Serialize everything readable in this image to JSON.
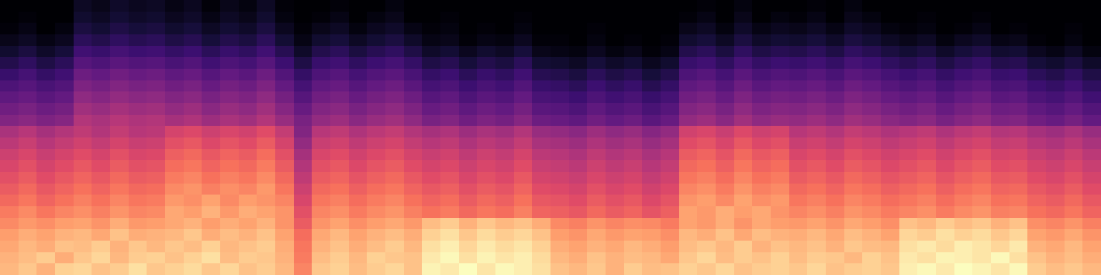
{
  "chart_data": {
    "type": "heatmap",
    "color": "magma",
    "tick_labels": false,
    "cells": [
      [
        80,
        83,
        79,
        85,
        86,
        82,
        84,
        88,
        83,
        85,
        87,
        83,
        86,
        82,
        84,
        80,
        70,
        83,
        85,
        81,
        84,
        86,
        82,
        92,
        90,
        94,
        89,
        93,
        91,
        88,
        82,
        80,
        83,
        79,
        84,
        81,
        82,
        85,
        83,
        86,
        82,
        84,
        85,
        83,
        86,
        82,
        84,
        85,
        83,
        91,
        93,
        90,
        94,
        92,
        89,
        93,
        84,
        81,
        83,
        80
      ],
      [
        79,
        81,
        84,
        78,
        83,
        86,
        80,
        84,
        85,
        82,
        85,
        88,
        81,
        84,
        83,
        79,
        68,
        81,
        84,
        80,
        85,
        83,
        82,
        90,
        93,
        88,
        92,
        89,
        91,
        87,
        80,
        78,
        82,
        79,
        81,
        80,
        77,
        83,
        86,
        81,
        84,
        82,
        85,
        81,
        84,
        83,
        80,
        85,
        82,
        90,
        88,
        92,
        91,
        89,
        93,
        88,
        82,
        79,
        81,
        78
      ],
      [
        77,
        80,
        78,
        82,
        81,
        84,
        79,
        83,
        80,
        83,
        81,
        85,
        80,
        82,
        84,
        78,
        67,
        79,
        82,
        78,
        81,
        84,
        80,
        88,
        91,
        86,
        90,
        87,
        89,
        85,
        78,
        76,
        79,
        77,
        80,
        78,
        75,
        81,
        83,
        80,
        84,
        79,
        82,
        80,
        82,
        79,
        83,
        81,
        80,
        88,
        90,
        87,
        91,
        89,
        86,
        90,
        79,
        77,
        80,
        76
      ],
      [
        75,
        78,
        76,
        79,
        80,
        77,
        82,
        78,
        79,
        80,
        83,
        78,
        81,
        79,
        82,
        76,
        65,
        77,
        80,
        76,
        79,
        81,
        78,
        85,
        88,
        83,
        87,
        84,
        86,
        82,
        75,
        73,
        77,
        74,
        76,
        75,
        72,
        80,
        78,
        82,
        77,
        81,
        79,
        78,
        80,
        77,
        81,
        79,
        76,
        86,
        84,
        88,
        85,
        87,
        83,
        86,
        76,
        74,
        77,
        73
      ],
      [
        71,
        74,
        72,
        75,
        76,
        73,
        78,
        74,
        75,
        77,
        79,
        75,
        78,
        76,
        79,
        73,
        61,
        73,
        76,
        72,
        75,
        77,
        74,
        81,
        84,
        79,
        83,
        80,
        82,
        78,
        71,
        69,
        73,
        70,
        72,
        71,
        68,
        76,
        74,
        78,
        73,
        77,
        75,
        74,
        76,
        73,
        77,
        75,
        72,
        82,
        80,
        84,
        81,
        83,
        79,
        82,
        72,
        70,
        73,
        69
      ],
      [
        68,
        71,
        67,
        70,
        72,
        69,
        73,
        70,
        71,
        77,
        75,
        79,
        74,
        78,
        76,
        73,
        58,
        70,
        72,
        68,
        71,
        73,
        69,
        66,
        68,
        64,
        67,
        65,
        69,
        63,
        62,
        60,
        64,
        61,
        63,
        59,
        62,
        76,
        74,
        78,
        75,
        77,
        73,
        70,
        72,
        69,
        73,
        71,
        68,
        70,
        72,
        68,
        71,
        73,
        69,
        70,
        66,
        64,
        67,
        63
      ],
      [
        64,
        67,
        63,
        66,
        69,
        66,
        70,
        67,
        68,
        74,
        72,
        76,
        71,
        75,
        73,
        70,
        55,
        67,
        69,
        65,
        68,
        70,
        66,
        63,
        65,
        61,
        64,
        62,
        66,
        60,
        59,
        57,
        61,
        58,
        60,
        56,
        59,
        73,
        75,
        71,
        76,
        72,
        74,
        67,
        69,
        66,
        70,
        68,
        65,
        67,
        69,
        65,
        68,
        70,
        66,
        67,
        63,
        61,
        64,
        60
      ],
      [
        61,
        64,
        60,
        63,
        66,
        63,
        67,
        64,
        65,
        71,
        73,
        69,
        72,
        70,
        74,
        67,
        52,
        64,
        66,
        62,
        65,
        67,
        63,
        60,
        62,
        58,
        61,
        59,
        63,
        57,
        56,
        54,
        58,
        55,
        57,
        53,
        56,
        70,
        72,
        68,
        73,
        69,
        71,
        64,
        66,
        63,
        67,
        65,
        62,
        64,
        66,
        62,
        65,
        67,
        63,
        64,
        60,
        58,
        61,
        57
      ],
      [
        58,
        61,
        57,
        60,
        63,
        60,
        64,
        61,
        62,
        68,
        70,
        66,
        69,
        67,
        71,
        64,
        49,
        61,
        63,
        59,
        62,
        64,
        60,
        57,
        59,
        55,
        58,
        56,
        60,
        54,
        53,
        51,
        55,
        52,
        54,
        50,
        53,
        67,
        69,
        65,
        70,
        66,
        68,
        61,
        63,
        60,
        64,
        62,
        59,
        61,
        63,
        59,
        62,
        64,
        60,
        61,
        57,
        55,
        58,
        54
      ],
      [
        55,
        58,
        54,
        57,
        60,
        57,
        61,
        58,
        59,
        65,
        67,
        63,
        66,
        64,
        68,
        61,
        46,
        58,
        60,
        56,
        59,
        61,
        57,
        54,
        56,
        52,
        55,
        53,
        57,
        51,
        50,
        48,
        52,
        49,
        51,
        47,
        50,
        64,
        66,
        62,
        67,
        63,
        65,
        58,
        60,
        57,
        61,
        59,
        56,
        58,
        60,
        56,
        59,
        61,
        57,
        58,
        54,
        52,
        55,
        51
      ],
      [
        52,
        55,
        51,
        54,
        57,
        54,
        58,
        55,
        56,
        62,
        64,
        60,
        63,
        61,
        65,
        58,
        43,
        55,
        57,
        53,
        56,
        58,
        54,
        51,
        53,
        49,
        52,
        50,
        54,
        48,
        47,
        45,
        49,
        46,
        48,
        44,
        47,
        61,
        63,
        59,
        64,
        60,
        62,
        55,
        57,
        54,
        58,
        56,
        53,
        55,
        57,
        53,
        56,
        58,
        54,
        55,
        51,
        49,
        52,
        48
      ],
      [
        48,
        51,
        47,
        50,
        53,
        50,
        54,
        51,
        52,
        58,
        60,
        56,
        59,
        57,
        61,
        54,
        39,
        51,
        53,
        49,
        52,
        54,
        50,
        47,
        49,
        45,
        48,
        46,
        50,
        44,
        43,
        41,
        45,
        42,
        44,
        40,
        43,
        57,
        59,
        55,
        60,
        56,
        58,
        51,
        53,
        50,
        54,
        52,
        49,
        51,
        53,
        49,
        52,
        54,
        50,
        51,
        47,
        45,
        48,
        44
      ],
      [
        44,
        47,
        43,
        46,
        49,
        46,
        50,
        47,
        48,
        54,
        56,
        52,
        55,
        53,
        57,
        50,
        35,
        47,
        49,
        45,
        48,
        50,
        46,
        43,
        45,
        41,
        44,
        42,
        46,
        40,
        39,
        37,
        41,
        38,
        40,
        36,
        39,
        53,
        55,
        51,
        56,
        52,
        54,
        47,
        49,
        46,
        50,
        48,
        45,
        47,
        49,
        45,
        48,
        50,
        46,
        47,
        43,
        41,
        44,
        40
      ],
      [
        35,
        37,
        34,
        36,
        46,
        44,
        47,
        45,
        46,
        43,
        45,
        41,
        44,
        42,
        46,
        40,
        33,
        39,
        41,
        37,
        40,
        42,
        38,
        33,
        35,
        31,
        34,
        32,
        36,
        30,
        29,
        27,
        31,
        28,
        30,
        26,
        29,
        39,
        41,
        37,
        42,
        38,
        40,
        39,
        41,
        38,
        42,
        40,
        37,
        35,
        37,
        33,
        36,
        38,
        34,
        35,
        31,
        29,
        32,
        28
      ],
      [
        31,
        33,
        30,
        32,
        42,
        40,
        43,
        41,
        42,
        39,
        41,
        37,
        40,
        38,
        42,
        36,
        29,
        35,
        37,
        33,
        36,
        38,
        34,
        29,
        31,
        27,
        30,
        28,
        32,
        26,
        25,
        23,
        27,
        24,
        26,
        22,
        25,
        35,
        37,
        33,
        38,
        34,
        36,
        35,
        37,
        34,
        38,
        36,
        33,
        31,
        33,
        29,
        32,
        34,
        30,
        31,
        27,
        25,
        28,
        24
      ],
      [
        27,
        29,
        26,
        28,
        38,
        36,
        39,
        37,
        38,
        35,
        37,
        33,
        36,
        34,
        38,
        32,
        25,
        31,
        33,
        29,
        32,
        34,
        30,
        25,
        27,
        23,
        26,
        24,
        28,
        22,
        21,
        19,
        23,
        20,
        22,
        18,
        21,
        31,
        33,
        29,
        34,
        30,
        32,
        31,
        33,
        30,
        34,
        32,
        29,
        27,
        29,
        25,
        28,
        30,
        26,
        27,
        23,
        21,
        24,
        20
      ],
      [
        23,
        25,
        22,
        24,
        34,
        32,
        35,
        33,
        34,
        31,
        33,
        29,
        32,
        30,
        34,
        28,
        21,
        27,
        29,
        25,
        28,
        30,
        26,
        21,
        23,
        19,
        22,
        20,
        24,
        18,
        17,
        15,
        19,
        16,
        18,
        14,
        17,
        27,
        29,
        25,
        30,
        26,
        28,
        27,
        29,
        26,
        30,
        28,
        25,
        23,
        25,
        21,
        24,
        26,
        22,
        23,
        19,
        17,
        20,
        16
      ],
      [
        18,
        21,
        17,
        20,
        30,
        28,
        31,
        29,
        30,
        27,
        29,
        25,
        28,
        26,
        30,
        24,
        17,
        23,
        25,
        21,
        24,
        26,
        22,
        17,
        19,
        15,
        18,
        16,
        20,
        14,
        13,
        11,
        15,
        12,
        14,
        10,
        13,
        23,
        25,
        21,
        26,
        22,
        24,
        23,
        25,
        22,
        26,
        24,
        21,
        19,
        21,
        17,
        20,
        22,
        18,
        19,
        15,
        13,
        16,
        12
      ],
      [
        13,
        16,
        12,
        15,
        25,
        23,
        26,
        24,
        25,
        22,
        24,
        20,
        23,
        21,
        25,
        19,
        12,
        18,
        20,
        16,
        19,
        21,
        17,
        12,
        14,
        10,
        13,
        11,
        15,
        9,
        8,
        6,
        10,
        7,
        9,
        5,
        8,
        18,
        20,
        16,
        21,
        17,
        19,
        18,
        20,
        17,
        21,
        19,
        16,
        14,
        16,
        12,
        15,
        17,
        13,
        14,
        10,
        8,
        11,
        7
      ],
      [
        8,
        11,
        7,
        10,
        20,
        18,
        21,
        19,
        20,
        17,
        19,
        15,
        18,
        16,
        20,
        14,
        7,
        13,
        15,
        11,
        14,
        16,
        12,
        7,
        9,
        5,
        8,
        6,
        10,
        4,
        3,
        2,
        5,
        2,
        4,
        1,
        3,
        13,
        15,
        11,
        16,
        12,
        14,
        13,
        15,
        12,
        16,
        14,
        11,
        9,
        11,
        7,
        10,
        12,
        8,
        9,
        5,
        3,
        6,
        2
      ],
      [
        4,
        6,
        3,
        5,
        15,
        13,
        16,
        14,
        15,
        12,
        14,
        10,
        13,
        11,
        15,
        9,
        3,
        8,
        10,
        6,
        9,
        11,
        7,
        3,
        4,
        1,
        3,
        2,
        5,
        1,
        1,
        0,
        2,
        0,
        1,
        0,
        1,
        8,
        10,
        6,
        11,
        7,
        9,
        8,
        10,
        7,
        11,
        9,
        6,
        4,
        6,
        2,
        5,
        7,
        3,
        4,
        1,
        0,
        2,
        0
      ],
      [
        1,
        3,
        0,
        2,
        11,
        9,
        12,
        10,
        11,
        8,
        10,
        6,
        9,
        7,
        11,
        5,
        1,
        4,
        6,
        2,
        5,
        7,
        3,
        1,
        2,
        0,
        1,
        0,
        2,
        0,
        0,
        0,
        1,
        0,
        0,
        0,
        0,
        4,
        6,
        2,
        7,
        3,
        5,
        4,
        6,
        3,
        7,
        5,
        2,
        1,
        2,
        0,
        1,
        3,
        0,
        1,
        0,
        0,
        1,
        0
      ],
      [
        0,
        1,
        0,
        0,
        8,
        6,
        9,
        7,
        8,
        5,
        7,
        3,
        6,
        4,
        8,
        2,
        0,
        1,
        3,
        0,
        2,
        4,
        0,
        0,
        1,
        0,
        0,
        0,
        1,
        0,
        0,
        0,
        0,
        0,
        0,
        0,
        0,
        1,
        3,
        0,
        4,
        0,
        2,
        1,
        3,
        0,
        4,
        2,
        0,
        0,
        1,
        0,
        0,
        1,
        0,
        0,
        0,
        0,
        0,
        0
      ],
      [
        0,
        0,
        0,
        0,
        6,
        4,
        7,
        5,
        6,
        3,
        5,
        1,
        4,
        2,
        6,
        1,
        0,
        0,
        1,
        0,
        0,
        2,
        0,
        0,
        0,
        0,
        0,
        0,
        0,
        0,
        0,
        0,
        0,
        0,
        0,
        0,
        0,
        0,
        1,
        0,
        2,
        0,
        0,
        0,
        1,
        0,
        2,
        0,
        0,
        0,
        0,
        0,
        0,
        0,
        0,
        0,
        0,
        0,
        0,
        0
      ]
    ]
  }
}
